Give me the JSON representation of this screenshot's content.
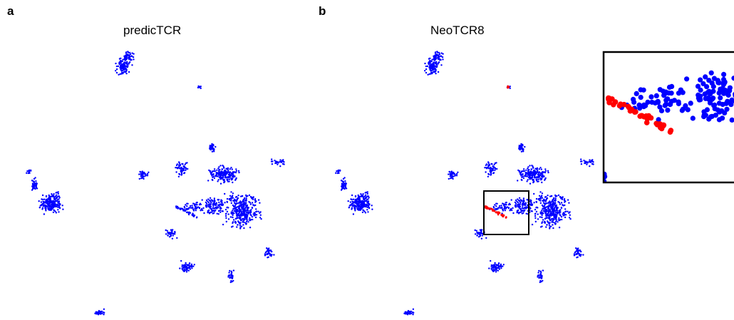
{
  "panels": [
    {
      "letter": "a",
      "title": "predicTCR"
    },
    {
      "letter": "b",
      "title": "NeoTCR8"
    }
  ],
  "chart_data": [
    {
      "type": "scatter",
      "title": "predicTCR",
      "axes_visible": false,
      "grid": false,
      "legend": "none",
      "series": [
        {
          "name": "",
          "color": "#0000ff"
        }
      ]
    },
    {
      "type": "scatter",
      "title": "NeoTCR8",
      "axes_visible": false,
      "grid": false,
      "legend": "none",
      "inset_zoom": true,
      "series": [
        {
          "name": "",
          "color": "#0000ff"
        },
        {
          "name": "",
          "color": "#ff0000"
        }
      ]
    }
  ],
  "colors": {
    "background": "#ffffff",
    "points_blue": "#0000ff",
    "points_red": "#ff0000",
    "box": "#000000"
  }
}
